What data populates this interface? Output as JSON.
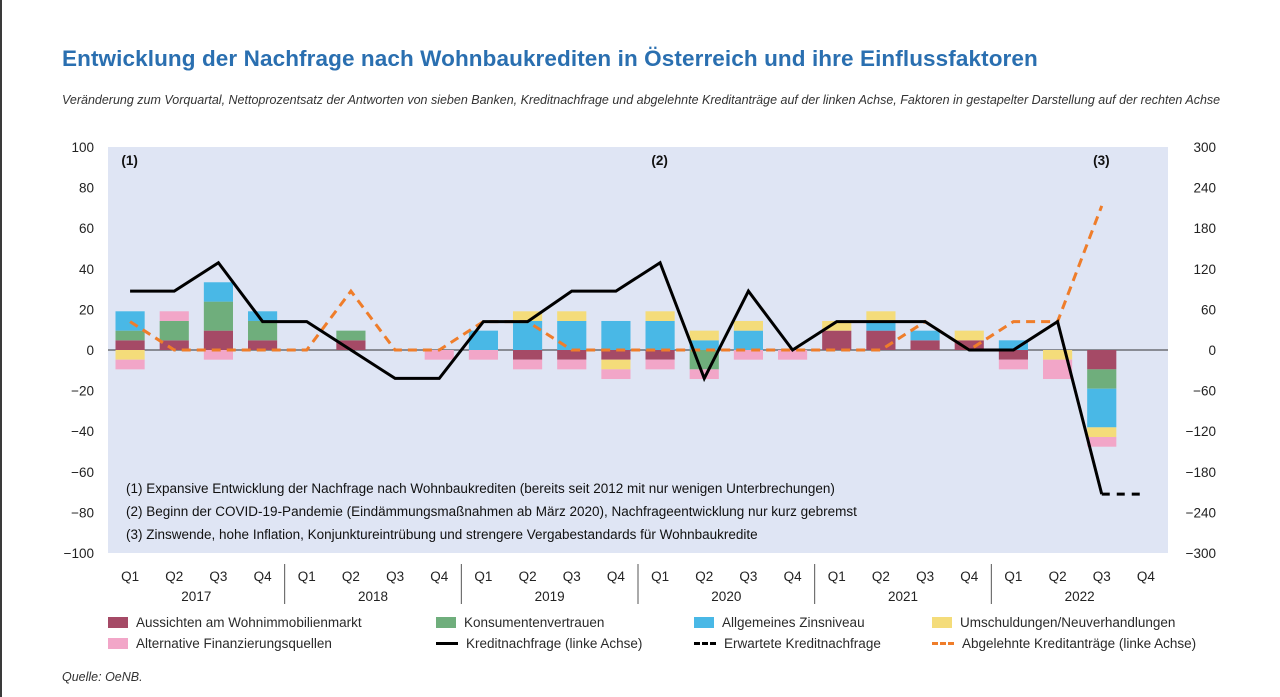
{
  "title": "Entwicklung der Nachfrage nach Wohnbaukrediten in Österreich und ihre Einflussfaktoren",
  "subtitle": "Veränderung zum Vorquartal, Nettoprozentsatz der Antworten von sieben Banken, Kreditnachfrage und abgelehnte Kreditanträge auf der linken Achse, Faktoren in gestapelter Darstellung auf der rechten Achse",
  "source": "Quelle: OeNB.",
  "colors": {
    "plot_bg": "#dfe5f4",
    "aussichten": "#a54a66",
    "konsumenten": "#6fae7c",
    "zins": "#49b8e6",
    "umschuldungen": "#f4dc7a",
    "alternative": "#f2a6c8",
    "kreditnachfrage": "#000000",
    "abgelehnte": "#ef7d2a"
  },
  "chart_data": {
    "type": "bar",
    "stacked": true,
    "left_axis": {
      "ylim": [
        -100,
        100
      ],
      "ticks": [
        "100",
        "80",
        "60",
        "40",
        "20",
        "0",
        "−20",
        "−40",
        "−60",
        "−80",
        "−100"
      ]
    },
    "right_axis": {
      "ylim": [
        -300,
        300
      ],
      "ticks": [
        "300",
        "240",
        "180",
        "120",
        "60",
        "0",
        "−60",
        "−120",
        "−180",
        "−240",
        "−300"
      ]
    },
    "quarter_labels": [
      "Q1",
      "Q2",
      "Q3",
      "Q4",
      "Q1",
      "Q2",
      "Q3",
      "Q4",
      "Q1",
      "Q2",
      "Q3",
      "Q4",
      "Q1",
      "Q2",
      "Q3",
      "Q4",
      "Q1",
      "Q2",
      "Q3",
      "Q4",
      "Q1",
      "Q2",
      "Q3",
      "Q4"
    ],
    "years": [
      "2017",
      "2018",
      "2019",
      "2020",
      "2021",
      "2022"
    ],
    "markers": [
      {
        "label": "(1)",
        "quarter_index": 0
      },
      {
        "label": "(2)",
        "quarter_index": 12
      },
      {
        "label": "(3)",
        "quarter_index": 22
      }
    ],
    "notes": [
      "(1) Expansive Entwicklung der Nachfrage nach Wohnbaukrediten (bereits seit 2012 mit nur wenigen Unterbrechungen)",
      "(2) Beginn der COVID-19-Pandemie (Eindämmungsmaßnahmen ab März 2020), Nachfrageentwicklung nur kurz gebremst",
      "(3) Zinswende, hohe Inflation, Konjunktureintrübung und strengere Vergabestandards für Wohnbaukredite"
    ],
    "bar_series": [
      {
        "name": "Aussichten am Wohnimmobilienmarkt",
        "key": "aussichten",
        "values": [
          14.3,
          14.3,
          28.6,
          14.3,
          0,
          14.3,
          0,
          0,
          0,
          -14.3,
          -14.3,
          -14.3,
          -14.3,
          0,
          0,
          0,
          28.6,
          28.6,
          14.3,
          14.3,
          -14.3,
          0,
          -28.6,
          null
        ]
      },
      {
        "name": "Konsumentenvertrauen",
        "key": "konsumenten",
        "values": [
          14.3,
          28.6,
          42.9,
          28.6,
          0,
          14.3,
          0,
          0,
          0,
          0,
          0,
          0,
          0,
          -28.6,
          0,
          0,
          0,
          0,
          0,
          0,
          0,
          0,
          -28.6,
          null
        ]
      },
      {
        "name": "Allgemeines Zinsniveau",
        "key": "zins",
        "values": [
          28.6,
          0,
          28.6,
          14.3,
          0,
          0,
          0,
          0,
          28.6,
          42.9,
          42.9,
          42.9,
          42.9,
          14.3,
          28.6,
          0,
          0,
          14.3,
          14.3,
          0,
          14.3,
          0,
          -57.1,
          null
        ]
      },
      {
        "name": "Umschuldungen/Neuverhandlungen",
        "key": "umschuldungen",
        "values": [
          -14.3,
          0,
          0,
          0,
          0,
          0,
          0,
          0,
          0,
          14.3,
          14.3,
          -14.3,
          14.3,
          14.3,
          14.3,
          0,
          14.3,
          14.3,
          0,
          14.3,
          0,
          -14.3,
          -14.3,
          null
        ]
      },
      {
        "name": "Alternative Finanzierungsquellen",
        "key": "alternative",
        "values": [
          -14.3,
          14.3,
          -14.3,
          0,
          0,
          0,
          0,
          -14.3,
          -14.3,
          -14.3,
          -14.3,
          -14.3,
          -14.3,
          -14.3,
          -14.3,
          -14.3,
          0,
          0,
          0,
          0,
          -14.3,
          -28.6,
          -14.3,
          null
        ]
      }
    ],
    "line_series": [
      {
        "name": "Kreditnachfrage (linke Achse)",
        "key": "kreditnachfrage",
        "style": "solid",
        "values": [
          29,
          29,
          43,
          14,
          14,
          0,
          -14,
          -14,
          14,
          14,
          29,
          29,
          43,
          -14,
          29,
          0,
          14,
          14,
          14,
          0,
          0,
          14,
          -71,
          null
        ]
      },
      {
        "name": "Erwartete Kreditnachfrage",
        "key": "kreditnachfrage",
        "style": "dashed",
        "values": [
          null,
          null,
          null,
          null,
          null,
          null,
          null,
          null,
          null,
          null,
          null,
          null,
          null,
          null,
          null,
          null,
          null,
          null,
          null,
          null,
          null,
          null,
          -71,
          -71
        ]
      },
      {
        "name": "Abgelehnte Kreditanträge (linke Achse)",
        "key": "abgelehnte",
        "style": "dashed",
        "values": [
          14,
          0,
          0,
          0,
          0,
          29,
          0,
          0,
          14,
          14,
          0,
          0,
          0,
          0,
          0,
          0,
          0,
          0,
          14,
          0,
          14,
          14,
          71,
          null
        ]
      }
    ]
  }
}
